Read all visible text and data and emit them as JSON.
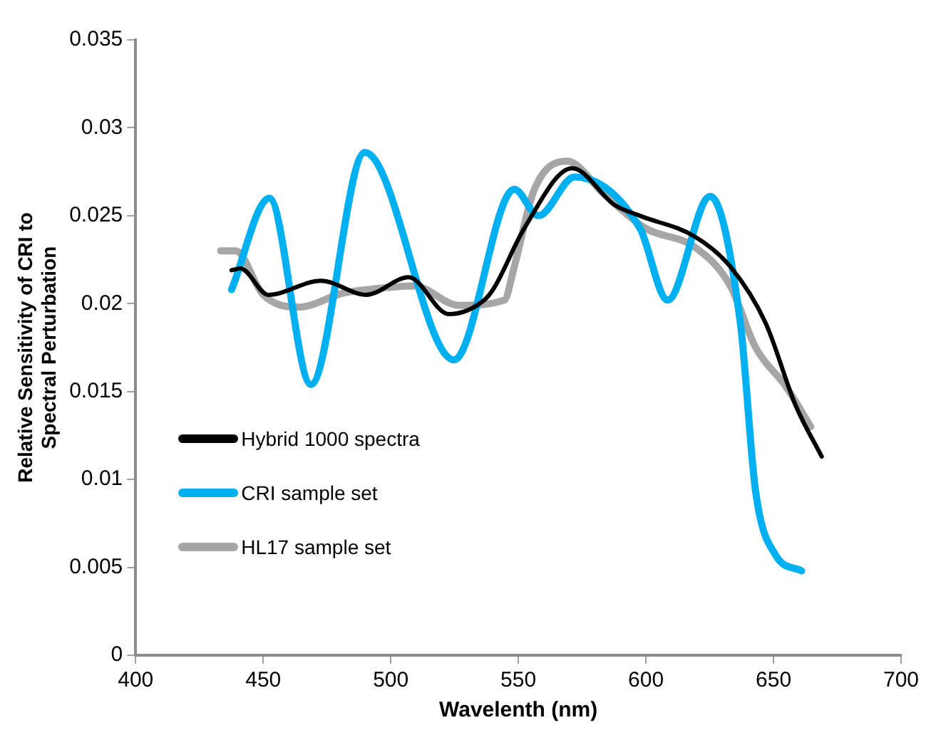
{
  "chart_data": {
    "type": "line",
    "xlabel": "Wavelenth (nm)",
    "ylabel": "Relative Sensitivity of CRI to Spectral Perturbation",
    "xlim": [
      400,
      700
    ],
    "xticks": [
      400,
      450,
      500,
      550,
      600,
      650,
      700
    ],
    "ylim": [
      0,
      0.035
    ],
    "yticks": [
      0,
      0.005,
      0.01,
      0.015,
      0.02,
      0.025,
      0.03,
      0.035
    ],
    "grid": false,
    "legend": "bottom left",
    "marker": "none",
    "line_style": "solid",
    "series": [
      {
        "name": "Hybrid 1000 spectra",
        "color": "#000000",
        "x": [
          437.6,
          441.1,
          452,
          472.6,
          490.4,
          507,
          522.8,
          536.6,
          540.5,
          552.4,
          571.1,
          587.8,
          597.6,
          619.3,
          633.1,
          646.9,
          658.7,
          668.9
        ],
        "values": [
          0.0219,
          0.022,
          0.0205,
          0.0213,
          0.0205,
          0.0215,
          0.0194,
          0.0202,
          0.0209,
          0.0243,
          0.0277,
          0.0256,
          0.025,
          0.0238,
          0.0221,
          0.0189,
          0.0142,
          0.0113
        ]
      },
      {
        "name": "CRI sample set",
        "color": "#00b0f0",
        "x": [
          437.6,
          452.4,
          468.7,
          489.8,
          524.8,
          548.4,
          557.9,
          572,
          597.6,
          608.5,
          625.2,
          637,
          643,
          650.8,
          661
        ],
        "values": [
          0.0208,
          0.026,
          0.0154,
          0.0286,
          0.0168,
          0.0265,
          0.025,
          0.0272,
          0.0243,
          0.0202,
          0.0261,
          0.0189,
          0.0093,
          0.0057,
          0.0048
        ]
      },
      {
        "name": "HL17 sample set",
        "color": "#a6a6a6",
        "x": [
          433.3,
          439.2,
          450,
          463.8,
          481.5,
          491.3,
          509.1,
          526.8,
          544.5,
          548.4,
          556.3,
          569.1,
          583.8,
          599.6,
          619.3,
          633.1,
          643,
          654.8,
          664.6
        ],
        "values": [
          0.023,
          0.023,
          0.0205,
          0.0198,
          0.0206,
          0.0208,
          0.021,
          0.0199,
          0.0202,
          0.0221,
          0.0265,
          0.0281,
          0.0262,
          0.0243,
          0.0232,
          0.021,
          0.0175,
          0.0153,
          0.013
        ]
      }
    ]
  }
}
